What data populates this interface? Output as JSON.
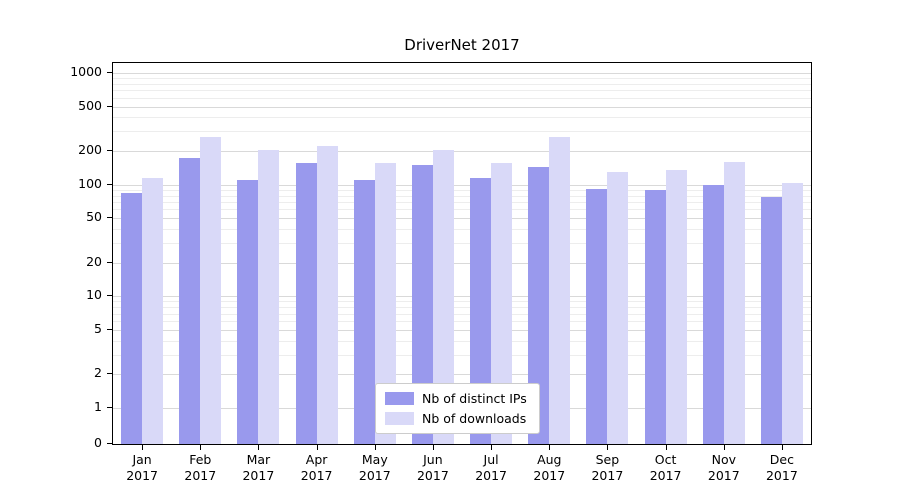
{
  "chart_data": {
    "type": "bar",
    "title": "DriverNet 2017",
    "scale": "symlog",
    "grid": true,
    "legend_position": "bottom-center",
    "year_label": "2017",
    "categories": [
      "Jan",
      "Feb",
      "Mar",
      "Apr",
      "May",
      "Jun",
      "Jul",
      "Aug",
      "Sep",
      "Oct",
      "Nov",
      "Dec"
    ],
    "yticks": [
      1000,
      500,
      200,
      100,
      50,
      20,
      10,
      5,
      2,
      1,
      0
    ],
    "ylim": [
      0,
      1000
    ],
    "series": [
      {
        "name": "Nb of distinct IPs",
        "color": "#9999ed",
        "values": [
          85,
          175,
          110,
          155,
          110,
          150,
          115,
          145,
          92,
          90,
          100,
          78
        ]
      },
      {
        "name": "Nb of downloads",
        "color": "#d9d9f8",
        "values": [
          115,
          265,
          205,
          220,
          155,
          205,
          155,
          270,
          130,
          135,
          160,
          103
        ]
      }
    ]
  }
}
